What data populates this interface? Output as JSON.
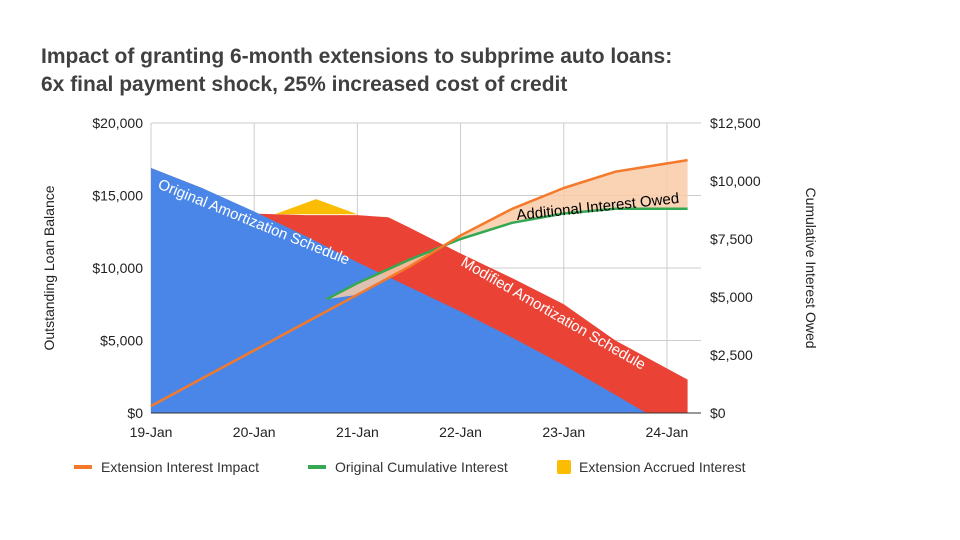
{
  "chart_data": {
    "type": "area",
    "title_line1": "Impact of granting 6-month extensions to subprime auto loans:",
    "title_line2": "6x final payment shock, 25% increased cost of credit",
    "x_categories": [
      "19-Jan",
      "20-Jan",
      "21-Jan",
      "22-Jan",
      "23-Jan",
      "24-Jan"
    ],
    "x_range": [
      0,
      5.33
    ],
    "left_axis": {
      "label": "Outstanding Loan Balance",
      "ticks": [
        "$0",
        "$5,000",
        "$10,000",
        "$15,000",
        "$20,000"
      ],
      "tick_values": [
        0,
        5000,
        10000,
        15000,
        20000
      ],
      "range": [
        0,
        20000
      ]
    },
    "right_axis": {
      "label": "Cumulative Interest Owed",
      "ticks": [
        "$0",
        "$2,500",
        "$5,000",
        "$7,500",
        "$10,000",
        "$12,500"
      ],
      "tick_values": [
        0,
        2500,
        5000,
        7500,
        10000,
        12500
      ],
      "range": [
        0,
        12500
      ]
    },
    "grid": true,
    "legend_position": "bottom",
    "series": [
      {
        "name": "Original Amortization Schedule",
        "axis": "left",
        "kind": "area",
        "color": "#4a86e8",
        "points": [
          [
            0,
            16900
          ],
          [
            0.5,
            15500
          ],
          [
            1,
            13900
          ],
          [
            1.5,
            12200
          ],
          [
            2,
            10400
          ],
          [
            2.5,
            8700
          ],
          [
            3,
            7000
          ],
          [
            3.5,
            5200
          ],
          [
            4,
            3300
          ],
          [
            4.5,
            1250
          ],
          [
            4.8,
            0
          ]
        ]
      },
      {
        "name": "Modified Amortization Schedule",
        "axis": "left",
        "kind": "area",
        "color": "#ea4335",
        "points": [
          [
            0,
            16900
          ],
          [
            0.5,
            15500
          ],
          [
            1,
            13750
          ],
          [
            1.5,
            13650
          ],
          [
            2,
            13650
          ],
          [
            2.3,
            13500
          ],
          [
            2.5,
            12800
          ],
          [
            3,
            11000
          ],
          [
            3.5,
            9300
          ],
          [
            4,
            7500
          ],
          [
            4.5,
            5000
          ],
          [
            5.2,
            2300
          ],
          [
            5.2,
            0
          ]
        ]
      },
      {
        "name": "Extension Accrued Interest",
        "axis": "left",
        "kind": "area",
        "color": "#fbbc04",
        "points": [
          [
            1.2,
            13700
          ],
          [
            1.6,
            14750
          ],
          [
            2,
            13700
          ]
        ]
      },
      {
        "name": "Extension Interest Impact",
        "axis": "right",
        "kind": "line",
        "color": "#f4792a",
        "points": [
          [
            0,
            300
          ],
          [
            0.5,
            1500
          ],
          [
            1,
            2700
          ],
          [
            1.5,
            3900
          ],
          [
            2,
            5100
          ],
          [
            2.5,
            6300
          ],
          [
            3,
            7650
          ],
          [
            3.5,
            8800
          ],
          [
            4,
            9700
          ],
          [
            4.5,
            10400
          ],
          [
            5.2,
            10900
          ]
        ]
      },
      {
        "name": "Original Cumulative Interest",
        "axis": "right",
        "kind": "line",
        "color": "#34a853",
        "points": [
          [
            1.7,
            4900
          ],
          [
            2,
            5600
          ],
          [
            2.5,
            6600
          ],
          [
            3,
            7500
          ],
          [
            3.5,
            8200
          ],
          [
            4,
            8600
          ],
          [
            4.5,
            8800
          ],
          [
            5.2,
            8800
          ]
        ]
      }
    ],
    "annotations": [
      {
        "text": "Original Amortization Schedule",
        "color": "#ffffff"
      },
      {
        "text": "Modified Amortization Schedule",
        "color": "#ffffff"
      },
      {
        "text": "Additional Interest Owed",
        "color": "#000000"
      }
    ],
    "legend": [
      {
        "name": "Extension Interest Impact",
        "color": "#f4792a",
        "marker": "line"
      },
      {
        "name": "Original Cumulative Interest",
        "color": "#34a853",
        "marker": "line"
      },
      {
        "name": "Extension Accrued Interest",
        "color": "#fbbc04",
        "marker": "square"
      }
    ]
  }
}
